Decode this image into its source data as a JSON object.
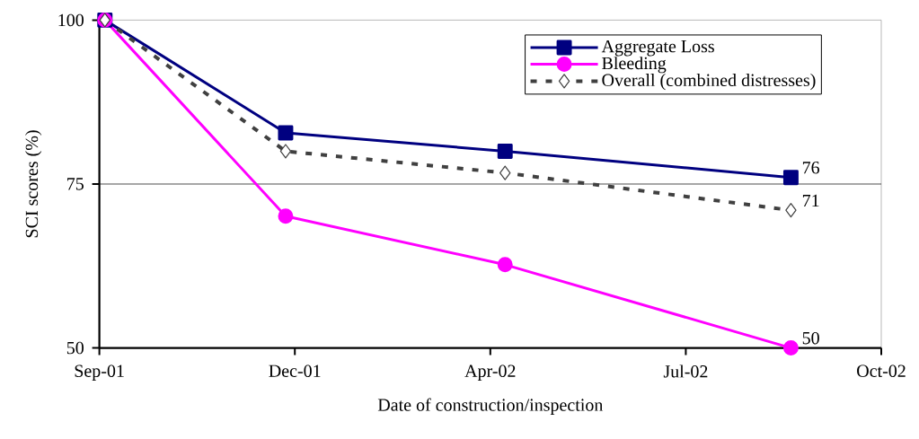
{
  "chart_data": {
    "type": "line",
    "xlabel": "Date of construction/inspection",
    "ylabel": "SCI scores (%)",
    "x": [
      "2001-09-04",
      "2001-12-11",
      "2002-04-09",
      "2002-09-11"
    ],
    "series": [
      {
        "name": "Aggregate Loss",
        "color": "#000080",
        "values": [
          100,
          82.8,
          80.0,
          76
        ],
        "marker": "square",
        "line_style": "solid",
        "value_labels": [
          null,
          null,
          null,
          "76"
        ]
      },
      {
        "name": "Bleeding",
        "color": "#ff00ff",
        "values": [
          100,
          70.1,
          62.7,
          50
        ],
        "marker": "circle",
        "line_style": "solid",
        "value_labels": [
          null,
          null,
          null,
          "50"
        ]
      },
      {
        "name": "Overall (combined distresses)",
        "color": "#404040",
        "values": [
          100,
          80.0,
          76.7,
          71
        ],
        "marker": "diamond",
        "line_style": "dashed",
        "value_labels": [
          null,
          null,
          null,
          "71"
        ]
      }
    ],
    "xlim": [
      "2001-09-01",
      "2002-10-30"
    ],
    "xticks": [
      {
        "value": "2001-09-01",
        "label": "Sep-01"
      },
      {
        "value": "2001-12-16",
        "label": "Dec-01"
      },
      {
        "value": "2002-04-01",
        "label": "Apr-02"
      },
      {
        "value": "2002-07-16",
        "label": "Jul-02"
      },
      {
        "value": "2002-10-30",
        "label": "Oct-02"
      }
    ],
    "ylim": [
      50,
      100
    ],
    "yticks": [
      50,
      75,
      100
    ],
    "ref_lines": [
      {
        "axis": "y",
        "value": 75,
        "color": "#000000"
      }
    ],
    "legend": "top right"
  }
}
